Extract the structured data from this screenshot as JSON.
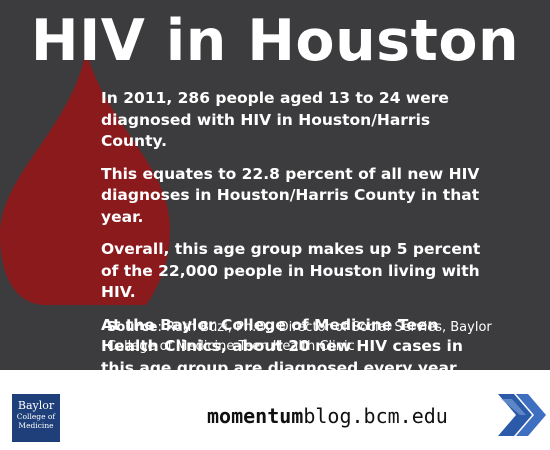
{
  "title": "HIV in Houston",
  "paragraphs": [
    "In 2011, 286 people aged 13 to 24 were diagnosed with HIV in Houston/Harris County.",
    "This equates to 22.8 percent of all new HIV diagnoses in Houston/Harris County in that year.",
    "Overall, this age group makes up 5 percent of the 22,000 people in Houston living with HIV.",
    "At the Baylor College of Medicine Teen Health Clinics, about 20 new HIV cases in this age group are diagnosed every year."
  ],
  "source": {
    "label": "Source",
    "text": ": Ruth Buzi, Ph.D., Director of Social Servies, Baylor College of Medicine Teen Health Clinic"
  },
  "logo": {
    "line1": "Baylor",
    "line2": "College of",
    "line3": "Medicine"
  },
  "site": {
    "bold": "momentum",
    "rest": "blog.bcm.edu"
  },
  "colors": {
    "background": "#3c3b3d",
    "blood_drop": "#8b1a1c",
    "logo_blue": "#1f3f7a",
    "chevron_blue": "#2b5aa8"
  },
  "icons": {
    "drop": "blood-drop-icon",
    "chevron": "double-chevron-icon"
  }
}
